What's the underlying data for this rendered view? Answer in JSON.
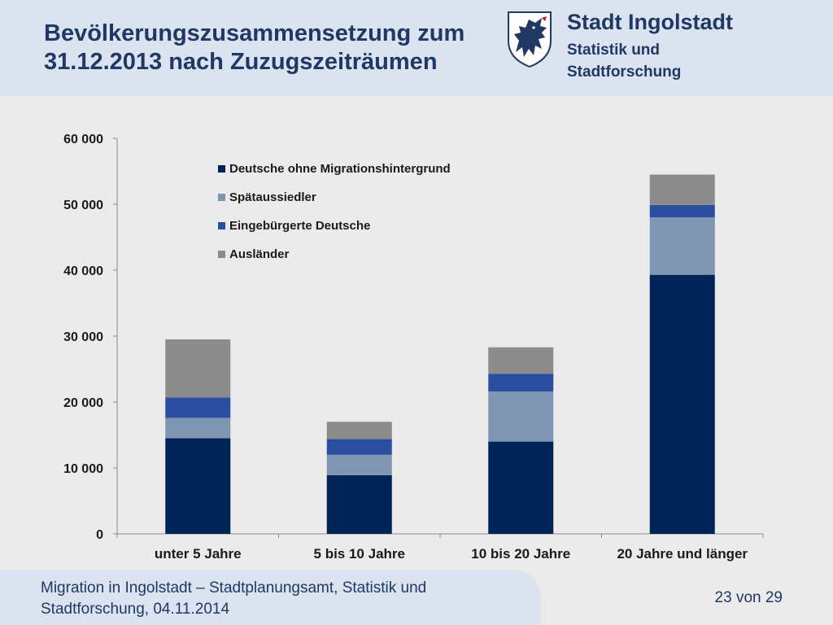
{
  "header": {
    "title_line1": "Bevölkerungszusammensetzung zum",
    "title_line2": "31.12.2013 nach Zuzugszeiträumen",
    "org_name": "Stadt Ingolstadt",
    "org_dept_line1": "Statistik und",
    "org_dept_line2": "Stadtforschung",
    "logo_icon": "ingolstadt-coat-of-arms-icon"
  },
  "chart_data": {
    "type": "bar",
    "stacked": true,
    "categories": [
      "unter 5 Jahre",
      "5 bis 10 Jahre",
      "10 bis 20 Jahre",
      "20 Jahre und länger"
    ],
    "series": [
      {
        "name": "Deutsche ohne Migrationshintergrund",
        "color": "#002457",
        "values": [
          14500,
          8900,
          14000,
          39300
        ]
      },
      {
        "name": "Spätaussiedler",
        "color": "#7f96b3",
        "values": [
          3100,
          3100,
          7600,
          8700
        ]
      },
      {
        "name": "Eingebürgerte Deutsche",
        "color": "#2c4ea1",
        "values": [
          3100,
          2400,
          2700,
          1900
        ]
      },
      {
        "name": "Ausländer",
        "color": "#8c8c8c",
        "values": [
          8800,
          2600,
          4000,
          4600
        ]
      }
    ],
    "ylim": [
      0,
      60000
    ],
    "yticks": [
      0,
      10000,
      20000,
      30000,
      40000,
      50000,
      60000
    ],
    "ytick_labels": [
      "0",
      "10 000",
      "20 000",
      "30 000",
      "40 000",
      "50 000",
      "60 000"
    ],
    "legend_position": "top-left inside plot area",
    "grid": false
  },
  "footer": {
    "line1": "Migration in Ingolstadt – Stadtplanungsamt, Statistik und",
    "line2": "Stadtforschung, 04.11.2014",
    "page": "23 von 29"
  }
}
